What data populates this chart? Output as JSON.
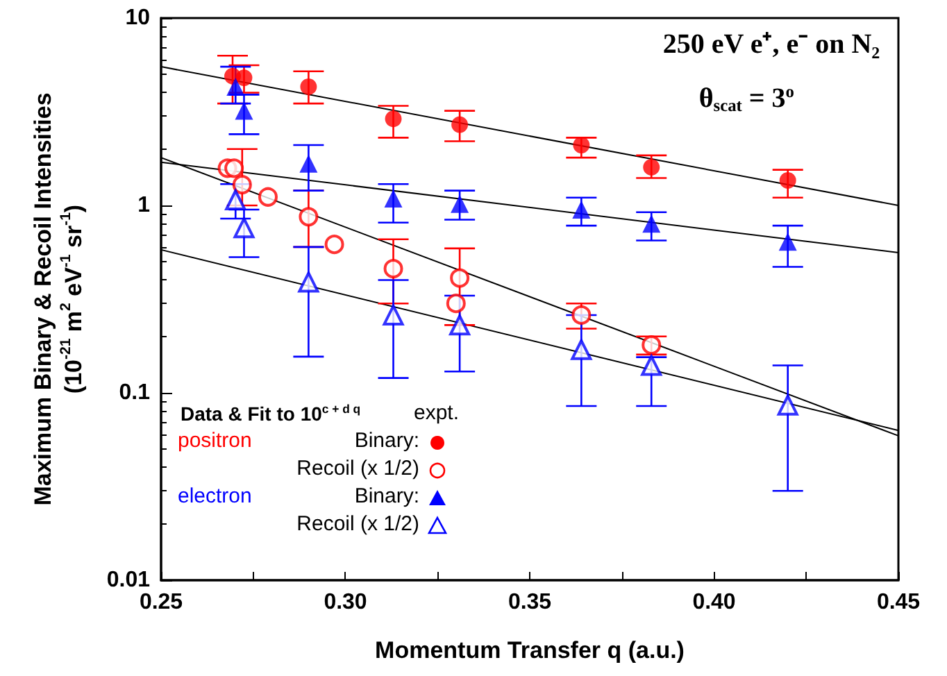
{
  "chart_data": {
    "type": "scatter",
    "title": "250 eV e⁺, e⁻ on N₂",
    "xlabel": "Momentum Transfer q (a.u.)",
    "ylabel": "Maximum Binary & Recoil Intensities\n(10$^{-21}$ m$^{2}$ eV$^{-1}$ sr$^{-1}$)",
    "legend_title": "Data & Fit to 10$^{c + d q}$",
    "annotations": [
      "θ$_{scat}$ = 3$^{o}$",
      "expt.",
      "positron",
      "electron"
    ],
    "xlim": [
      0.25,
      0.45
    ],
    "xticks": [
      0.25,
      {
        "value": 0.275,
        "label": null
      },
      {
        "value": 0.3,
        "label": "0.30"
      },
      {
        "value": 0.325,
        "label": null
      },
      0.35,
      {
        "value": 0.375,
        "label": null
      },
      {
        "value": 0.4,
        "label": "0.40"
      },
      {
        "value": 0.425,
        "label": null
      },
      0.45
    ],
    "ylim": [
      0.01,
      10
    ],
    "yticks": [
      0.01,
      0.1,
      1,
      10
    ],
    "log": "y",
    "grid": false,
    "legend": "bottom left",
    "series": [
      {
        "name": "Binary:",
        "color": "#ff0000",
        "marker": "circle",
        "x": [
          0.2694,
          0.2725,
          0.29,
          0.313,
          0.331,
          0.364,
          0.383,
          0.42
        ],
        "values": [
          4.9,
          4.8,
          4.3,
          2.9,
          2.7,
          2.1,
          1.6,
          1.36
        ],
        "errors": [
          [
            3.5,
            6.3
          ],
          [
            4.0,
            5.6
          ],
          [
            3.5,
            5.2
          ],
          [
            2.3,
            3.4
          ],
          [
            2.2,
            3.2
          ],
          [
            1.8,
            2.3
          ],
          [
            1.4,
            1.85
          ],
          [
            1.1,
            1.55
          ]
        ]
      },
      {
        "name": "Recoil (x 1/2)",
        "color": "#ff0000",
        "marker": "emptyCircle",
        "x": [
          0.268,
          0.2698,
          0.272,
          0.279,
          0.29,
          0.297,
          0.313,
          0.33,
          0.331,
          0.364,
          0.383
        ],
        "values": [
          1.58,
          1.58,
          1.29,
          1.11,
          0.87,
          0.62,
          0.46,
          0.3,
          0.41,
          0.26,
          0.18
        ],
        "errors": [
          null,
          null,
          [
            1.0,
            2.0
          ],
          null,
          [
            0.6,
            1.2
          ],
          null,
          [
            0.3,
            0.66
          ],
          null,
          [
            0.23,
            0.59
          ],
          [
            0.22,
            0.3
          ],
          [
            0.16,
            0.2
          ]
        ]
      },
      {
        "name": "Binary:",
        "color": "#0000ff",
        "marker": "triangle",
        "x": [
          0.2702,
          0.2725,
          0.29,
          0.313,
          0.331,
          0.364,
          0.383,
          0.42
        ],
        "values": [
          4.3,
          3.2,
          1.67,
          1.09,
          1.02,
          0.95,
          0.8,
          0.64
        ],
        "errors": [
          [
            3.5,
            5.5
          ],
          [
            2.4,
            3.9
          ],
          [
            1.2,
            2.1
          ],
          [
            0.81,
            1.3
          ],
          [
            0.84,
            1.2
          ],
          [
            0.78,
            1.1
          ],
          [
            0.65,
            0.92
          ],
          [
            0.47,
            0.78
          ]
        ]
      },
      {
        "name": "Recoil (x 1/2)",
        "color": "#0000ff",
        "x": [
          0.2702,
          0.2725,
          0.29,
          0.313,
          0.331,
          0.364,
          0.383,
          0.42
        ],
        "values": [
          1.07,
          0.76,
          0.39,
          0.26,
          0.23,
          0.17,
          0.14,
          0.086
        ],
        "errors": [
          [
            0.85,
            1.3
          ],
          [
            0.53,
            0.95
          ],
          [
            0.156,
            0.6
          ],
          [
            0.12,
            0.4
          ],
          [
            0.13,
            0.33
          ],
          [
            0.085,
            0.26
          ],
          [
            0.085,
            0.155
          ],
          [
            0.03,
            0.14
          ]
        ]
      },
      {
        "type": "line",
        "color": "#000000",
        "marker": "none",
        "x": [
          0.25,
          0.45
        ],
        "values": [
          5.5,
          1.0
        ]
      },
      {
        "type": "line",
        "color": "#000000",
        "marker": "none",
        "x": [
          0.25,
          0.45
        ],
        "values": [
          1.8,
          0.059
        ]
      },
      {
        "type": "line",
        "color": "#000000",
        "marker": "none",
        "x": [
          0.25,
          0.45
        ],
        "values": [
          1.7,
          0.56
        ]
      },
      {
        "type": "line",
        "color": "#000000",
        "marker": "none",
        "x": [
          0.25,
          0.45
        ],
        "values": [
          0.58,
          0.063
        ]
      }
    ]
  }
}
